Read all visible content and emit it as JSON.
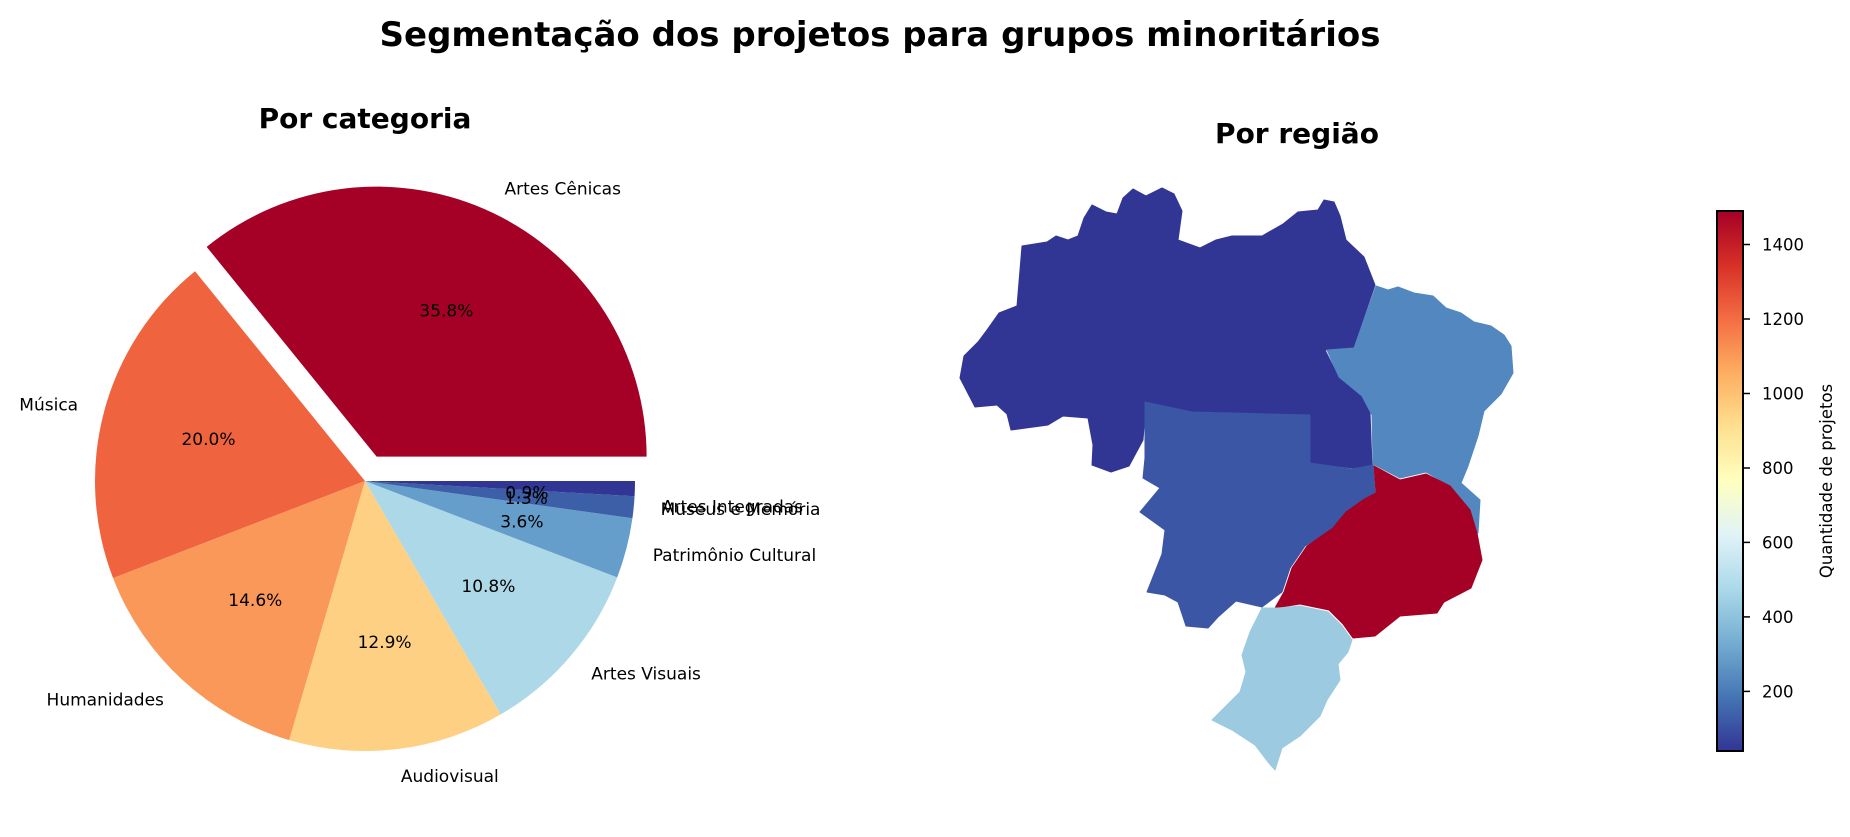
{
  "title": "Segmentação dos projetos para grupos minoritários",
  "chart_data": [
    {
      "type": "pie",
      "title": "Por categoria",
      "slices": [
        {
          "label": "Artes Cênicas",
          "value": 35.8,
          "pct": "35.8%",
          "color": "#a50026",
          "explode": true
        },
        {
          "label": "Música",
          "value": 20.0,
          "pct": "20.0%",
          "color": "#ef633e",
          "explode": false
        },
        {
          "label": "Humanidades",
          "value": 14.6,
          "pct": "14.6%",
          "color": "#f99858",
          "explode": false
        },
        {
          "label": "Audiovisual",
          "value": 12.9,
          "pct": "12.9%",
          "color": "#fdd083",
          "explode": false
        },
        {
          "label": "Artes Visuais",
          "value": 10.8,
          "pct": "10.8%",
          "color": "#add8e8",
          "explode": false
        },
        {
          "label": "Patrimônio Cultural",
          "value": 3.6,
          "pct": "3.6%",
          "color": "#659ecb",
          "explode": false
        },
        {
          "label": "Museus e Memória",
          "value": 1.3,
          "pct": "1.3%",
          "color": "#3d5fa8",
          "explode": false
        },
        {
          "label": "Artes Integradas",
          "value": 0.9,
          "pct": "0.9%",
          "color": "#313695",
          "explode": false
        }
      ],
      "start_angle_deg": 0,
      "direction": "counterclockwise"
    },
    {
      "type": "choropleth_map",
      "title": "Por região",
      "regions": [
        {
          "region": "Norte",
          "value": 45,
          "color": "#313695"
        },
        {
          "region": "Nordeste",
          "value": 310,
          "color": "#5287bf"
        },
        {
          "region": "Centro-Oeste",
          "value": 150,
          "color": "#3a56a5"
        },
        {
          "region": "Sudeste",
          "value": 1480,
          "color": "#a50026"
        },
        {
          "region": "Sul",
          "value": 420,
          "color": "#9ccae1"
        }
      ],
      "colorbar": {
        "label": "Quantidade de projetos",
        "range": [
          40,
          1490
        ],
        "ticks": [
          200,
          400,
          600,
          800,
          1000,
          1200,
          1400
        ],
        "colormap": "RdYlBu_r",
        "stops": [
          "#313695",
          "#4575b4",
          "#74add1",
          "#abd9e9",
          "#e0f3f8",
          "#ffffbf",
          "#fee090",
          "#fdae61",
          "#f46d43",
          "#d73027",
          "#a50026"
        ]
      }
    }
  ]
}
